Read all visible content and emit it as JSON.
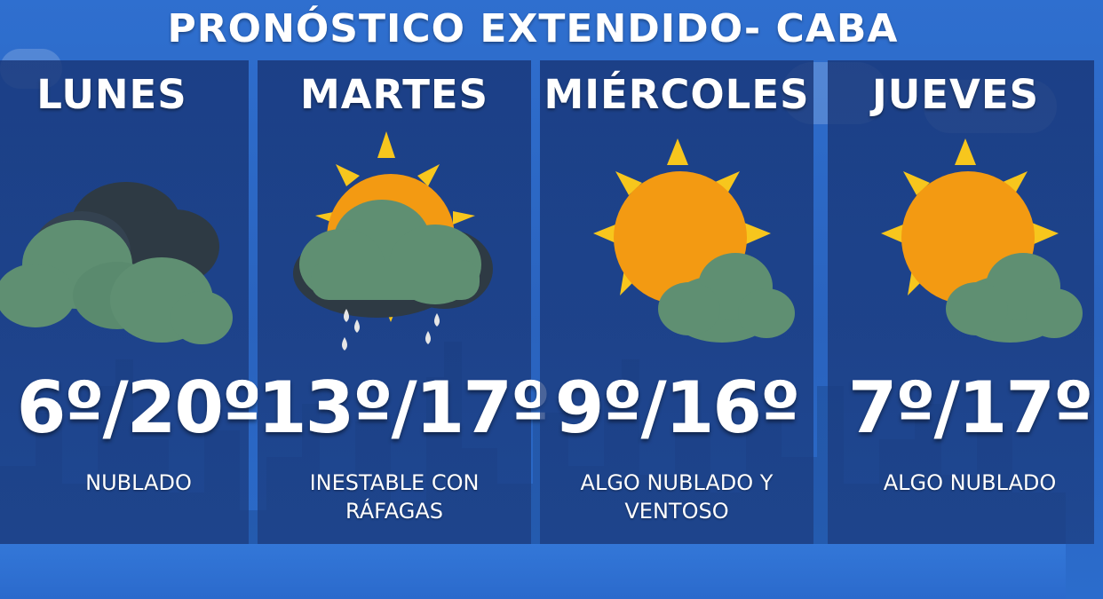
{
  "title": "PRONÓSTICO EXTENDIDO- CABA",
  "days": [
    {
      "name": "LUNES",
      "temp": "6º/20º",
      "desc_line1": "NUBLADO",
      "desc_line2": "",
      "icon": "cloudy-icon"
    },
    {
      "name": "MARTES",
      "temp": "13º/17º",
      "desc_line1": "INESTABLE CON",
      "desc_line2": "RÁFAGAS",
      "icon": "sun-rain-cloud-icon"
    },
    {
      "name": "MIÉRCOLES",
      "temp": "9º/16º",
      "desc_line1": "ALGO NUBLADO Y",
      "desc_line2": "VENTOSO",
      "icon": "partly-cloudy-icon"
    },
    {
      "name": "JUEVES",
      "temp": "7º/17º",
      "desc_line1": "ALGO NUBLADO",
      "desc_line2": "",
      "icon": "partly-cloudy-icon"
    }
  ],
  "colors": {
    "background": "#2f6fcf",
    "panel": "#1e3f82",
    "cloud": "#5f8f72",
    "dark_cloud": "#2e3a44",
    "sun": "#f39a12",
    "sun_rays": "#f7c61d"
  }
}
